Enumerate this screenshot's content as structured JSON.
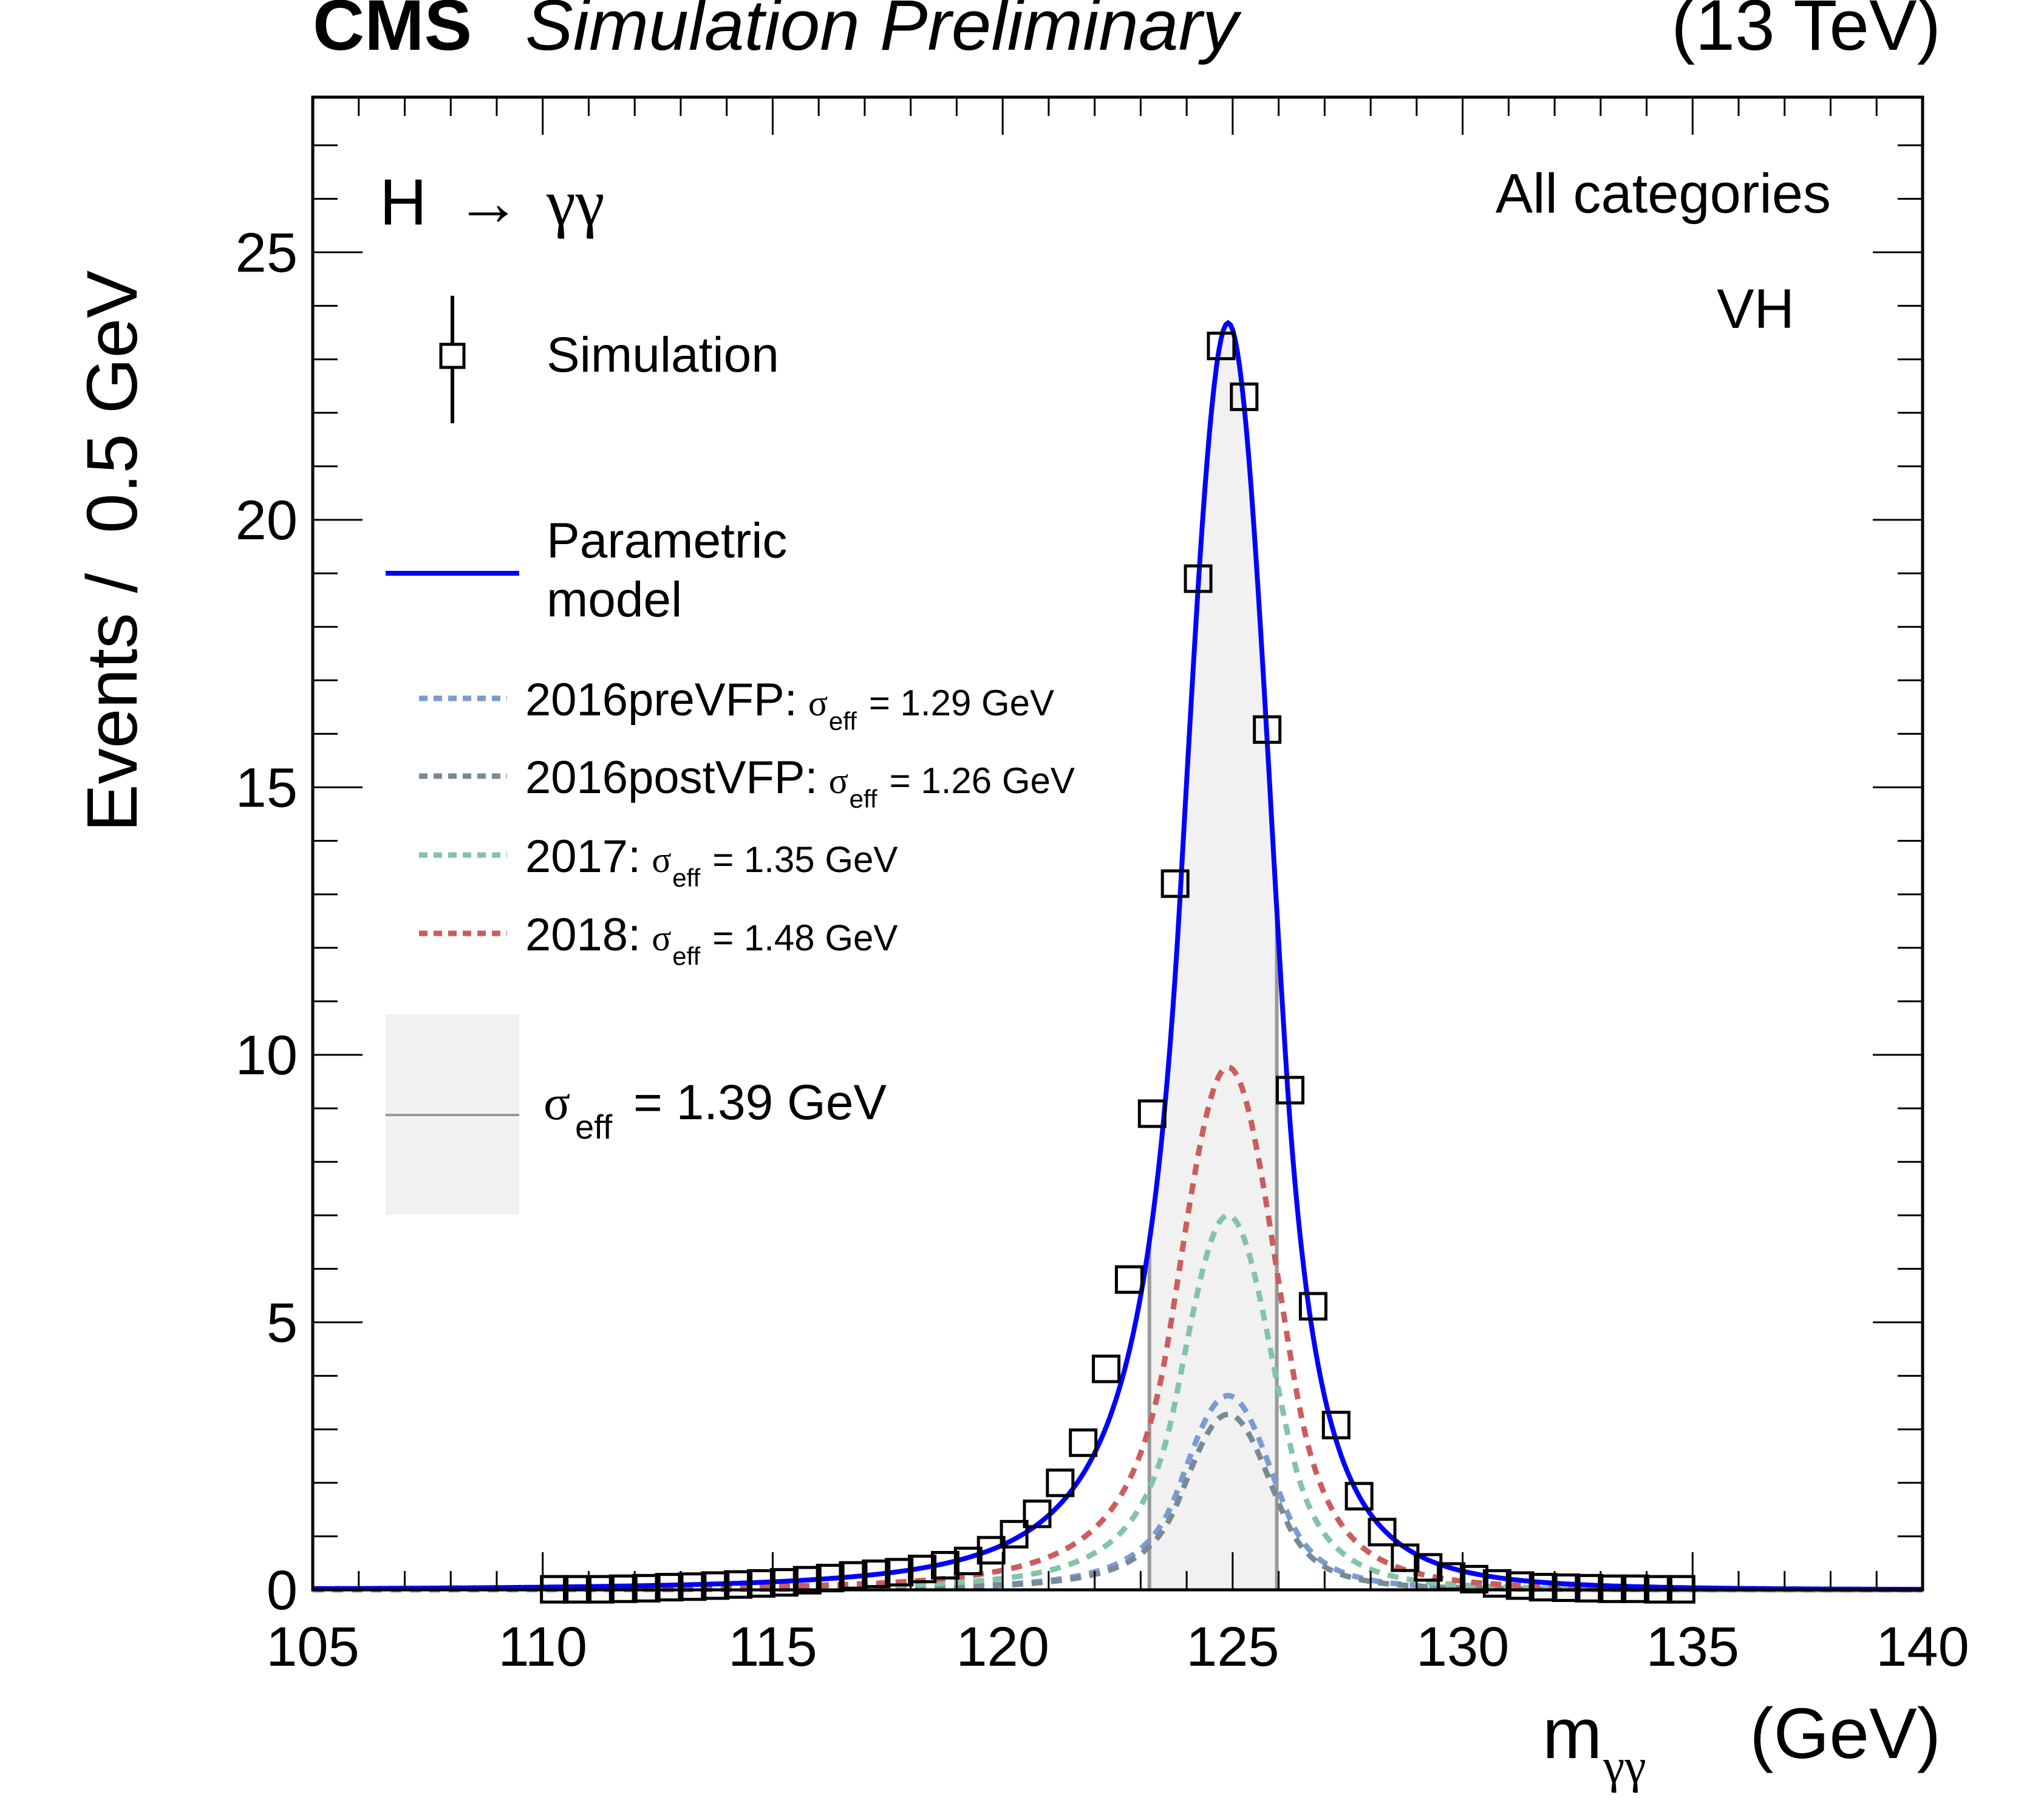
{
  "header": {
    "experiment": "CMS",
    "status": "Simulation Preliminary",
    "energy": "(13 TeV)"
  },
  "annotations": {
    "process_main": "H",
    "process_arrow": "→",
    "process_products": "γγ",
    "category": "All categories",
    "production": "VH"
  },
  "legend": {
    "simulation": "Simulation",
    "model_line1": "Parametric",
    "model_line2": "model",
    "years": [
      {
        "label": "2016preVFP:",
        "sigma_value": "= 1.29 GeV",
        "color": "#7b9bd2"
      },
      {
        "label": "2016postVFP:",
        "sigma_value": "= 1.26 GeV",
        "color": "#788a94"
      },
      {
        "label": "2017:",
        "sigma_value": "= 1.35 GeV",
        "color": "#83c4a6"
      },
      {
        "label": "2018:",
        "sigma_value": "= 1.48 GeV",
        "color": "#cd5c5c"
      }
    ],
    "sigma_symbol": "σ",
    "sigma_sub": "eff",
    "sigma_total": "= 1.39 GeV"
  },
  "colors": {
    "model": "#0000ff",
    "band_fill": "#f1f1f1",
    "band_edge": "#999999",
    "marker": "#000000"
  },
  "chart_data": {
    "type": "line",
    "title": "CMS Simulation Preliminary (13 TeV)",
    "xlabel": "m",
    "xlabel_sub": "γγ",
    "xlabel_unit": "(GeV)",
    "ylabel": "Events /  0.5 GeV",
    "xlim": [
      105,
      140
    ],
    "ylim": [
      0,
      27.9
    ],
    "xticks": [
      105,
      110,
      115,
      120,
      125,
      130,
      135,
      140
    ],
    "yticks": [
      0,
      5,
      10,
      15,
      20,
      25
    ],
    "grid": false,
    "legend_position": "top-left",
    "sigma_eff_band": [
      123.19,
      125.96
    ],
    "simulation": {
      "name": "Simulation",
      "x": [
        110.25,
        110.75,
        111.25,
        111.75,
        112.25,
        112.75,
        113.25,
        113.75,
        114.25,
        114.75,
        115.25,
        115.75,
        116.25,
        116.75,
        117.25,
        117.75,
        118.25,
        118.75,
        119.25,
        119.75,
        120.25,
        120.75,
        121.25,
        121.75,
        122.25,
        122.75,
        123.25,
        123.75,
        124.25,
        124.75,
        125.25,
        125.75,
        126.25,
        126.75,
        127.25,
        127.75,
        128.25,
        128.75,
        129.25,
        129.75,
        130.25,
        130.75,
        131.25,
        131.75,
        132.25,
        132.75,
        133.25,
        133.75,
        134.25,
        134.75
      ],
      "y": [
        0.01,
        0.01,
        0.01,
        0.02,
        0.03,
        0.05,
        0.06,
        0.08,
        0.1,
        0.12,
        0.14,
        0.18,
        0.22,
        0.27,
        0.3,
        0.33,
        0.39,
        0.46,
        0.54,
        0.74,
        1.04,
        1.42,
        2.0,
        2.75,
        4.13,
        5.8,
        8.9,
        13.2,
        18.9,
        23.25,
        22.3,
        16.08,
        9.34,
        5.3,
        3.08,
        1.75,
        1.08,
        0.6,
        0.42,
        0.25,
        0.2,
        0.12,
        0.08,
        0.05,
        0.04,
        0.03,
        0.02,
        0.02,
        0.01,
        0.01
      ]
    },
    "series": [
      {
        "name": "Parametric model",
        "peak_x": 124.9,
        "peak_y": 23.68,
        "style": "solid"
      },
      {
        "name": "2016preVFP",
        "sigma_eff": 1.29,
        "peak_x": 124.9,
        "peak_y": 3.63,
        "style": "dotted"
      },
      {
        "name": "2016postVFP",
        "sigma_eff": 1.26,
        "peak_x": 124.9,
        "peak_y": 3.28,
        "style": "dotted"
      },
      {
        "name": "2017",
        "sigma_eff": 1.35,
        "peak_x": 124.9,
        "peak_y": 7.0,
        "style": "dotted"
      },
      {
        "name": "2018",
        "sigma_eff": 1.48,
        "peak_x": 124.9,
        "peak_y": 9.77,
        "style": "dotted"
      }
    ]
  }
}
